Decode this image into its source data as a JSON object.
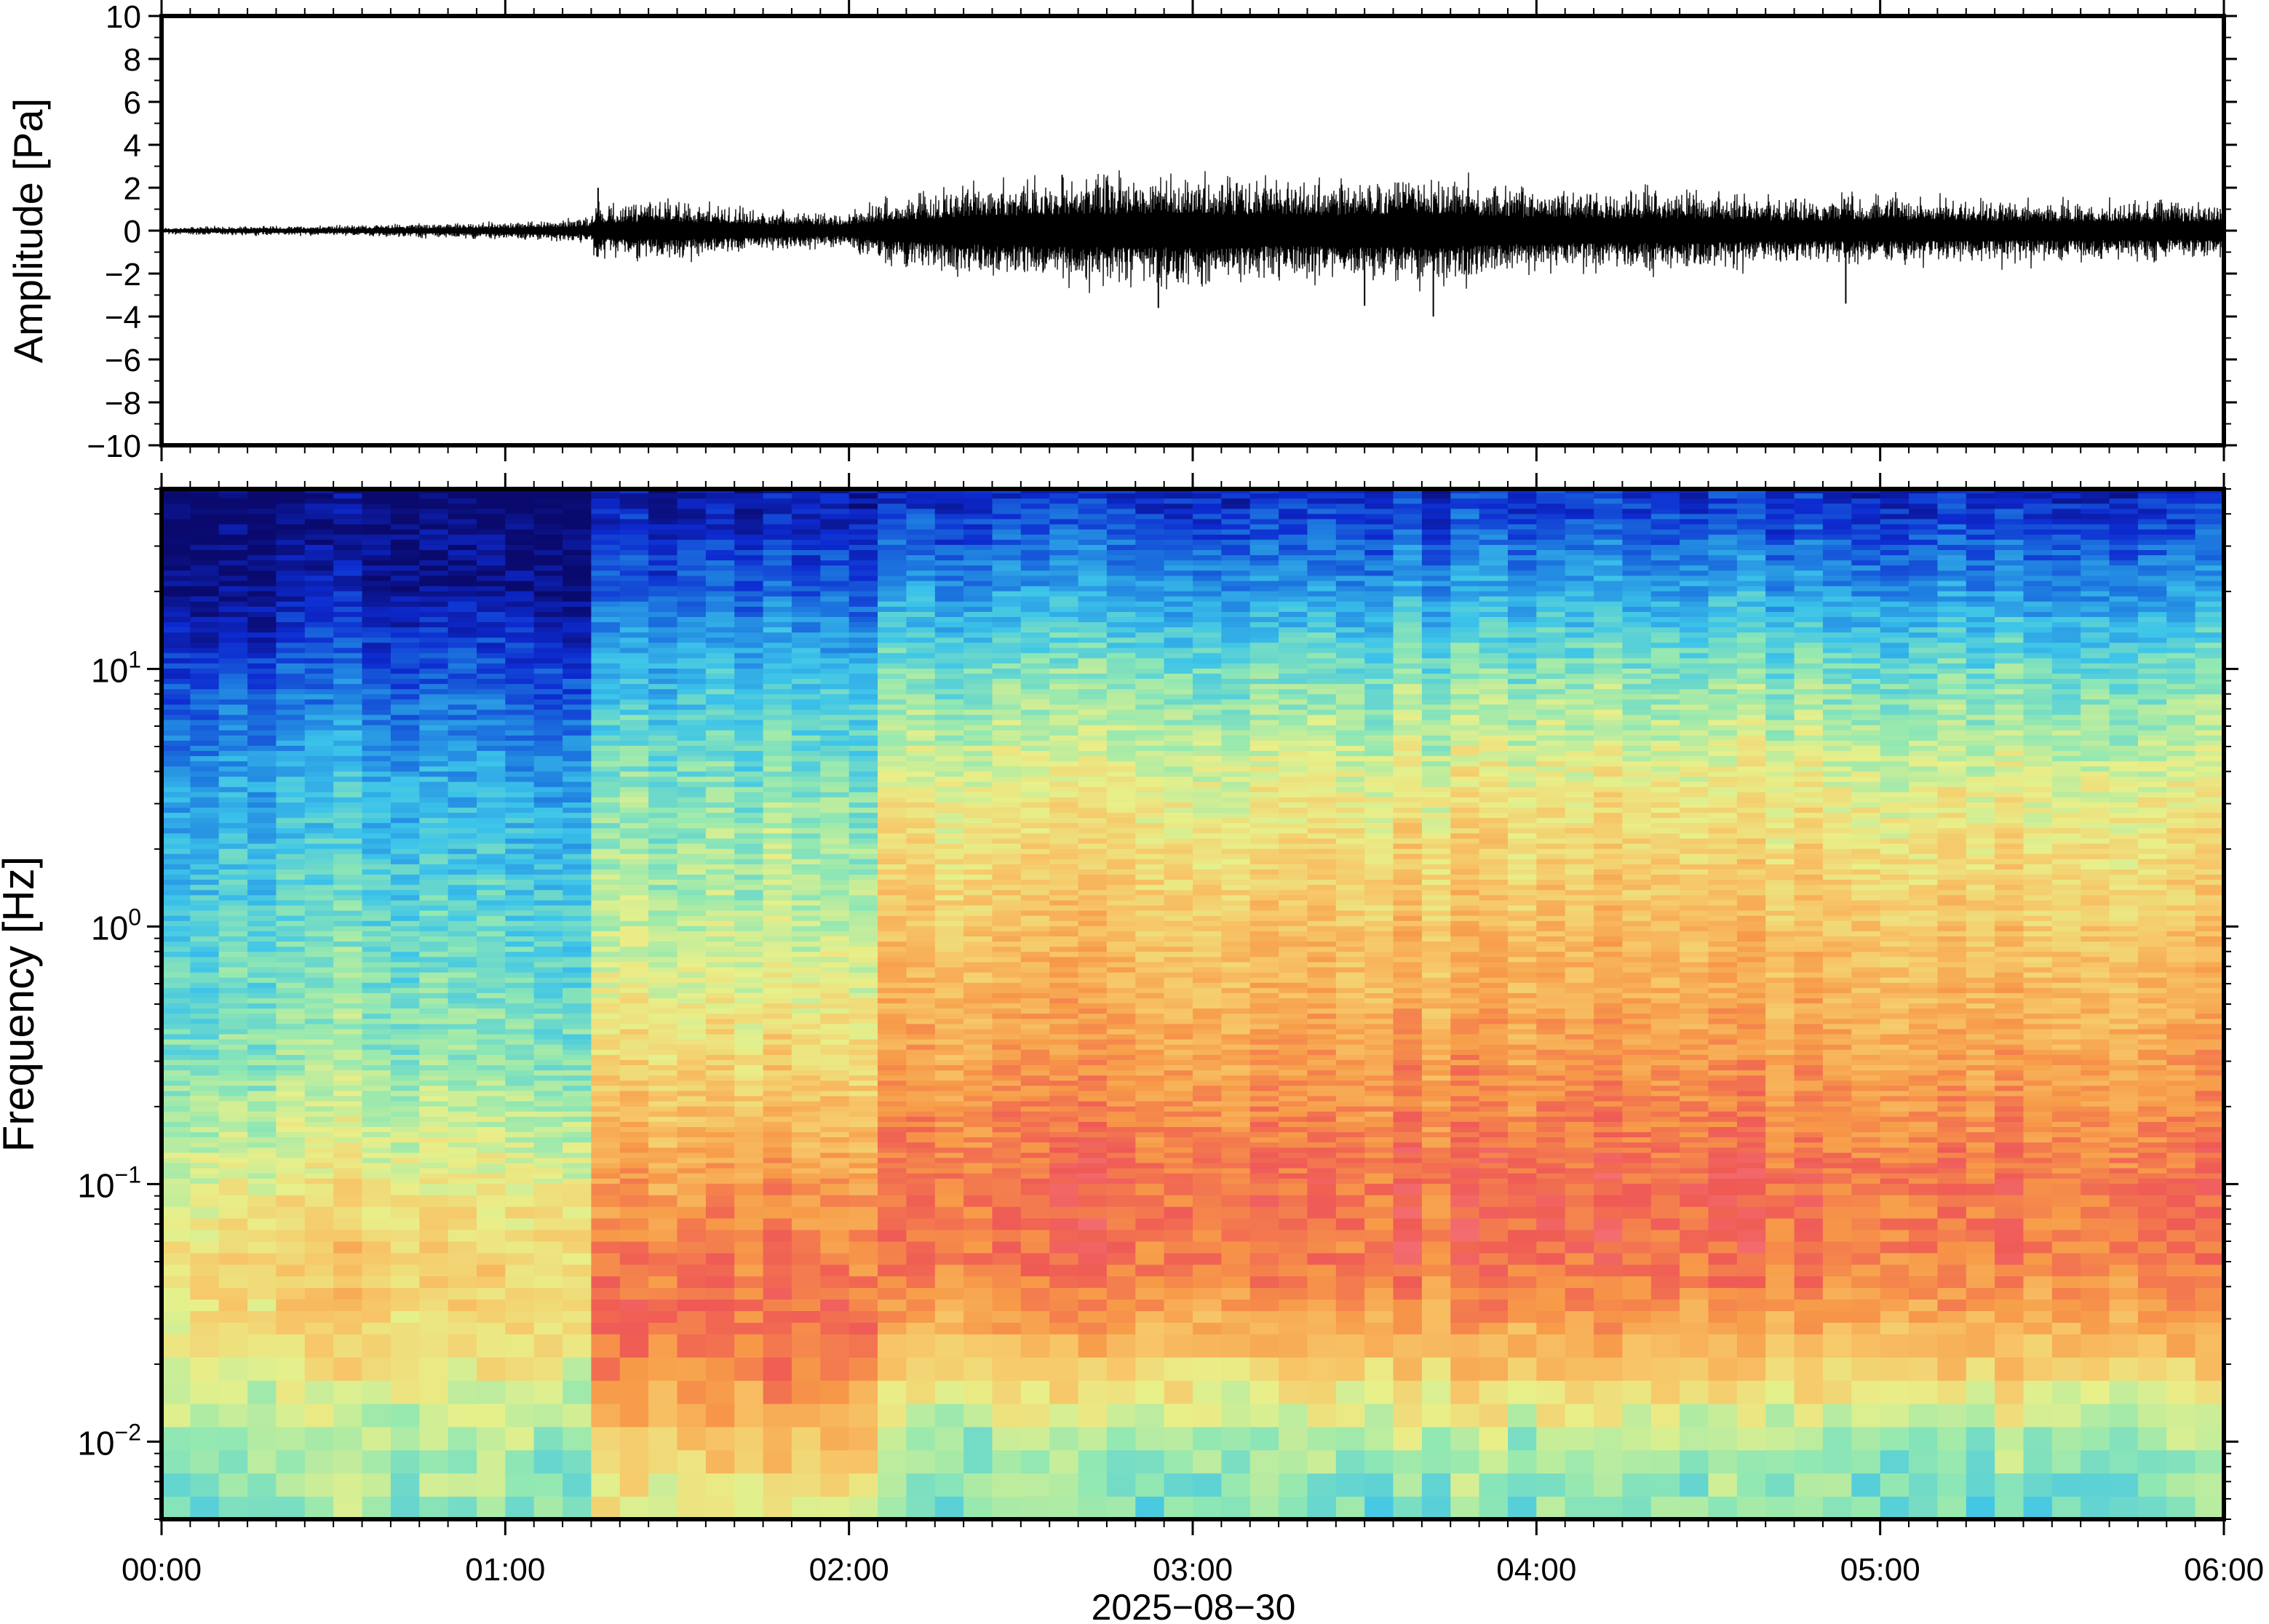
{
  "chart_data": [
    {
      "type": "line",
      "ylabel": "Amplitude [Pa]",
      "ylim": [
        -10,
        10
      ],
      "yticks": [
        10,
        8,
        6,
        4,
        2,
        0,
        -2,
        -4,
        -6,
        -8,
        -10
      ],
      "ytick_labels": [
        "10",
        "8",
        "6",
        "4",
        "2",
        "0",
        "−2",
        "−4",
        "−6",
        "−8",
        "−10"
      ],
      "xlim_hours": [
        0,
        6
      ],
      "series": [
        {
          "values_envelope": {
            "x_hours": [
              0.0,
              0.5,
              1.0,
              1.25,
              1.27,
              1.28,
              1.5,
              1.75,
              2.0,
              2.1,
              2.3,
              2.5,
              2.7,
              3.0,
              3.3,
              3.5,
              3.7,
              4.0,
              4.3,
              4.5,
              4.7,
              5.0,
              5.3,
              5.5,
              5.8,
              6.0
            ],
            "amplitude": [
              0.15,
              0.2,
              0.35,
              0.5,
              1.9,
              1.0,
              1.2,
              0.8,
              0.7,
              1.3,
              1.7,
              2.0,
              2.2,
              2.2,
              2.0,
              2.1,
              2.2,
              1.7,
              1.6,
              1.6,
              1.3,
              1.4,
              1.3,
              1.2,
              1.2,
              1.1
            ],
            "peaks": [
              {
                "x_hours": 1.27,
                "value": 2.0
              },
              {
                "x_hours": 2.9,
                "value": -3.6
              },
              {
                "x_hours": 3.5,
                "value": -3.5
              },
              {
                "x_hours": 3.7,
                "value": -4.0
              },
              {
                "x_hours": 4.9,
                "value": -3.4
              },
              {
                "x_hours": 2.62,
                "value": 2.6
              }
            ]
          }
        }
      ]
    },
    {
      "type": "heatmap",
      "ylabel": "Frequency [Hz]",
      "yscale": "log",
      "ylim_hz": [
        0.005,
        50
      ],
      "yticks_hz": [
        10,
        1,
        0.1,
        0.01
      ],
      "ytick_labels": [
        {
          "base": "10",
          "exp": "1"
        },
        {
          "base": "10",
          "exp": "0"
        },
        {
          "base": "10",
          "exp": "−1"
        },
        {
          "base": "10",
          "exp": "−2"
        }
      ],
      "xlabel": "2025−08−30",
      "xtick_labels": [
        "00:00",
        "01:00",
        "02:00",
        "03:00",
        "04:00",
        "05:00",
        "06:00"
      ],
      "xlim_hours": [
        0,
        6
      ],
      "colormap": "spectral-like (dark blue → cyan → yellow → orange → red/pink)",
      "colormap_stops": [
        "#0a0a6e",
        "#0d2ad0",
        "#1e7de0",
        "#3cc4ea",
        "#92e8b2",
        "#e8f08a",
        "#f7c668",
        "#f79a48",
        "#ef5a55",
        "#f8808c"
      ],
      "power_model": {
        "description": "relative power level 0..1 by time segment (hours) and log10 frequency",
        "segments": [
          {
            "t0": 0.0,
            "t1": 1.28,
            "levels": {
              "-2.3": 0.45,
              "-2": 0.5,
              "-1.6": 0.62,
              "-1.3": 0.66,
              "-1": 0.58,
              "-0.5": 0.46,
              "0": 0.4,
              "0.5": 0.32,
              "1": 0.18,
              "1.3": 0.06,
              "1.7": 0.0
            }
          },
          {
            "t0": 1.28,
            "t1": 2.05,
            "levels": {
              "-2.3": 0.56,
              "-2": 0.66,
              "-1.6": 0.86,
              "-1.3": 0.82,
              "-1": 0.76,
              "-0.5": 0.62,
              "0": 0.5,
              "0.5": 0.44,
              "1": 0.32,
              "1.3": 0.18,
              "1.7": 0.05
            }
          },
          {
            "t0": 2.05,
            "t1": 6.0,
            "levels": {
              "-2.3": 0.42,
              "-2": 0.48,
              "-1.6": 0.72,
              "-1.3": 0.84,
              "-1": 0.86,
              "-0.5": 0.76,
              "0": 0.68,
              "0.5": 0.58,
              "1": 0.42,
              "1.3": 0.28,
              "1.7": 0.1
            }
          }
        ]
      }
    }
  ]
}
